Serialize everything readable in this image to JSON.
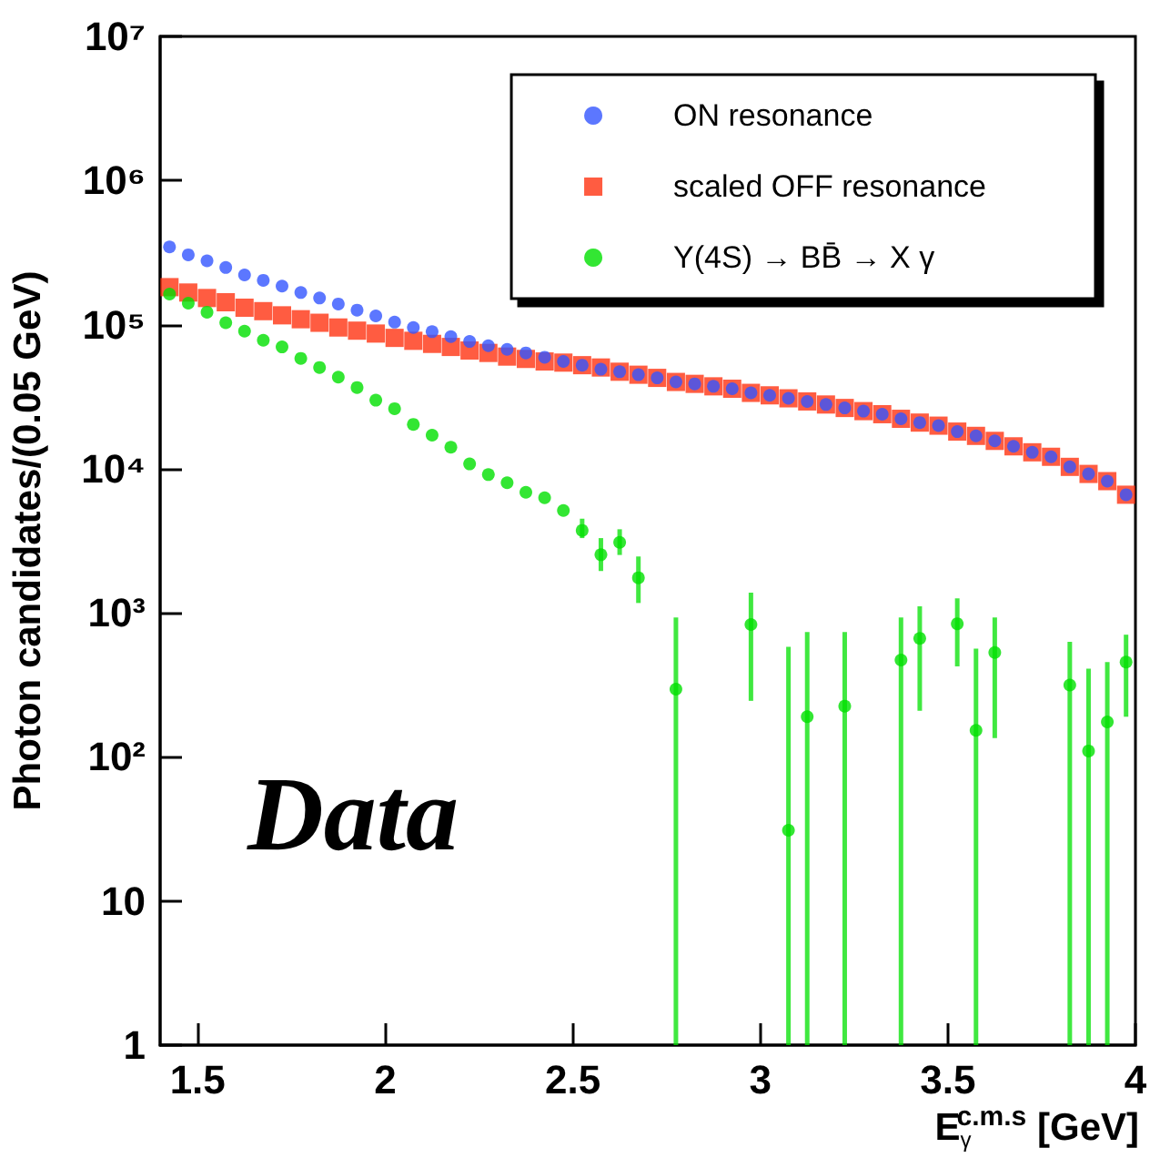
{
  "chart_data": {
    "type": "scatter",
    "xlabel": "E$_{γ}$$^{c.m.s}$ [GeV]",
    "ylabel": "Photon candidates/(0.05 GeV)",
    "x": [
      1.425,
      1.475,
      1.525,
      1.575,
      1.625,
      1.675,
      1.725,
      1.775,
      1.825,
      1.875,
      1.925,
      1.975,
      2.025,
      2.075,
      2.125,
      2.175,
      2.225,
      2.275,
      2.325,
      2.375,
      2.425,
      2.475,
      2.525,
      2.575,
      2.625,
      2.675,
      2.725,
      2.775,
      2.825,
      2.875,
      2.925,
      2.975,
      3.025,
      3.075,
      3.125,
      3.175,
      3.225,
      3.275,
      3.325,
      3.375,
      3.425,
      3.475,
      3.525,
      3.575,
      3.625,
      3.675,
      3.725,
      3.775,
      3.825,
      3.875,
      3.925,
      3.975
    ],
    "series": [
      {
        "name": "ON resonance",
        "color": "#3355ff",
        "marker": "circle",
        "values": [
          346000,
          305000,
          277000,
          249000,
          221000,
          203000,
          185000,
          167000,
          153000,
          139000,
          126000,
          115000,
          104000,
          95500,
          89300,
          82600,
          76400,
          71400,
          67300,
          63600,
          59400,
          55500,
          52300,
          49000,
          47100,
          44900,
          42700,
          40000,
          38800,
          37300,
          35900,
          33600,
          32300,
          30800,
          29300,
          27900,
          26400,
          25100,
          23900,
          22200,
          20900,
          19900,
          18100,
          16900,
          15600,
          14300,
          13000,
          12100,
          10300,
          9200,
          8200,
          6600
        ]
      },
      {
        "name": "scaled OFF resonance",
        "color": "#ff3311",
        "marker": "square",
        "values": [
          182000,
          167000,
          153000,
          143000,
          131000,
          124000,
          116000,
          109000,
          103000,
          95500,
          90800,
          86700,
          80900,
          77200,
          73500,
          70000,
          66100,
          63600,
          60000,
          57800,
          55500,
          54500,
          52300,
          50400,
          47100,
          44900,
          42700,
          40000,
          38800,
          37300,
          35900,
          33600,
          32300,
          30800,
          29300,
          27900,
          26400,
          25100,
          23900,
          22200,
          20900,
          19900,
          18100,
          16900,
          15600,
          14300,
          13000,
          12100,
          10300,
          9200,
          8200,
          6600
        ]
      },
      {
        "name": "Υ(4S) → BB̄ → X γ",
        "color": "#00e000",
        "marker": "circle",
        "values": [
          163000,
          141000,
          122000,
          103000,
          90100,
          77900,
          70000,
          58300,
          50400,
          43200,
          36600,
          29900,
          26100,
          20300,
          17100,
          14100,
          10800,
          9100,
          8000,
          6860,
          6290,
          5130,
          3730,
          2530,
          3080,
          1750,
          null,
          295,
          null,
          null,
          null,
          830,
          null,
          31,
          190,
          null,
          225,
          null,
          null,
          470,
          665,
          null,
          840,
          153,
          530,
          null,
          null,
          null,
          315,
          110,
          175,
          455
        ],
        "errors": [
          null,
          null,
          null,
          null,
          null,
          null,
          null,
          null,
          null,
          null,
          null,
          null,
          null,
          null,
          null,
          null,
          null,
          null,
          null,
          null,
          null,
          null,
          [
            3300,
            4500
          ],
          [
            1950,
            3300
          ],
          [
            2520,
            3800
          ],
          [
            1170,
            2460
          ],
          null,
          [
            1,
            930
          ],
          null,
          null,
          null,
          [
            245,
            1380
          ],
          null,
          [
            1,
            580
          ],
          [
            1,
            735
          ],
          null,
          [
            1,
            735
          ],
          null,
          null,
          [
            1,
            930
          ],
          [
            209,
            1110
          ],
          null,
          [
            425,
            1260
          ],
          [
            1,
            565
          ],
          [
            135,
            930
          ],
          null,
          null,
          null,
          [
            1,
            630
          ],
          [
            1,
            410
          ],
          [
            1,
            455
          ],
          [
            190,
            705
          ]
        ]
      }
    ],
    "xlim": [
      1.4,
      4
    ],
    "xticks": [
      1.5,
      2,
      2.5,
      3,
      3.5,
      4
    ],
    "log": "y",
    "ylim": [
      1,
      10000000
    ],
    "yticks": [
      1,
      10,
      {
        "value": 100,
        "label": "10²"
      },
      {
        "value": 1000,
        "label": "10³"
      },
      {
        "value": 10000,
        "label": "10⁴"
      },
      {
        "value": 100000,
        "label": "10⁵"
      },
      {
        "value": 1000000,
        "label": "10⁶"
      },
      {
        "value": 10000000,
        "label": "10⁷"
      }
    ],
    "grid": false,
    "legend": "top right",
    "annotations": [
      "Data"
    ]
  }
}
